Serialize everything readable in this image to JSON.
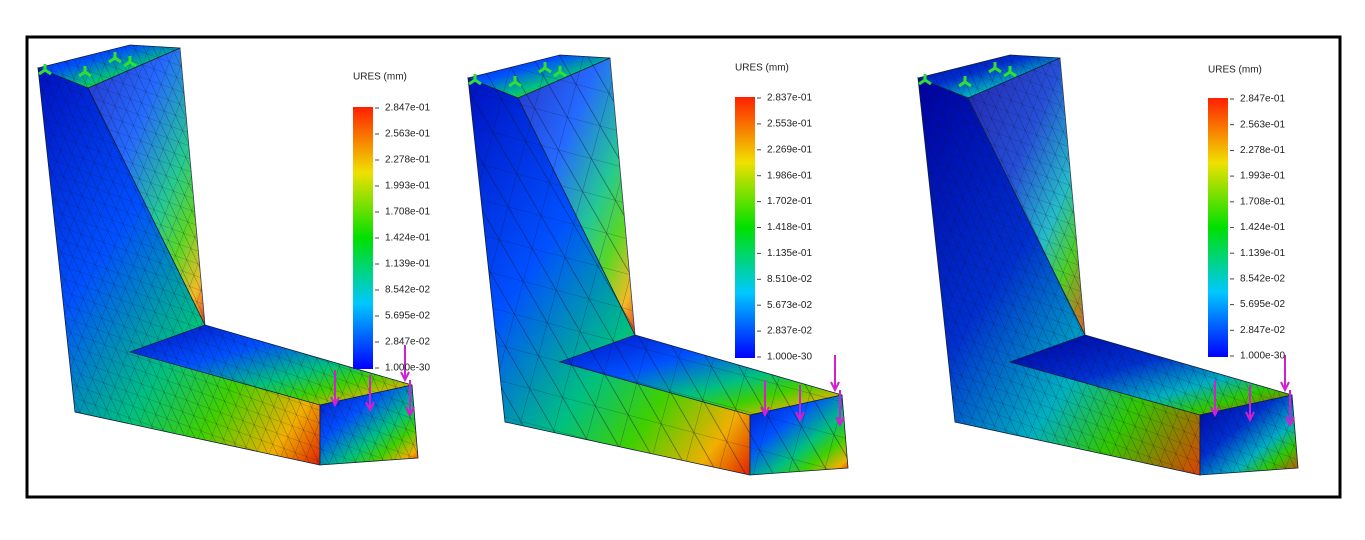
{
  "panels": [
    {
      "legend_title": "URES (mm)",
      "labels": [
        "2.847e-01",
        "2.563e-01",
        "2.278e-01",
        "1.993e-01",
        "1.708e-01",
        "1.424e-01",
        "1.139e-01",
        "8.542e-02",
        "5.695e-02",
        "2.847e-02",
        "1.000e-30"
      ]
    },
    {
      "legend_title": "URES (mm)",
      "labels": [
        "2.837e-01",
        "2.553e-01",
        "2.269e-01",
        "1.986e-01",
        "1.702e-01",
        "1.418e-01",
        "1.135e-01",
        "8.510e-02",
        "5.673e-02",
        "2.837e-02",
        "1.000e-30"
      ]
    },
    {
      "legend_title": "URES (mm)",
      "labels": [
        "2.847e-01",
        "2.563e-01",
        "2.278e-01",
        "1.993e-01",
        "1.708e-01",
        "1.424e-01",
        "1.139e-01",
        "8.542e-02",
        "5.695e-02",
        "2.847e-02",
        "1.000e-30"
      ]
    }
  ]
}
